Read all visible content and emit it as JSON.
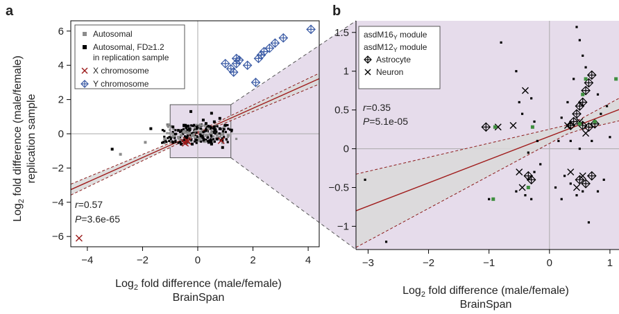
{
  "chart_data": [
    {
      "panel": "a",
      "type": "scatter",
      "xlabel": "Log2 fold difference (male/female)",
      "xlabel_sub": "BrainSpan",
      "ylabel": "Log2 fold difference (male/female)",
      "ylabel_sub": "replication sample",
      "xlim": [
        -4.6,
        4.4
      ],
      "ylim": [
        -6.6,
        6.6
      ],
      "xticks": [
        -4,
        -2,
        0,
        2,
        4
      ],
      "yticks": [
        -6,
        -4,
        -2,
        0,
        2,
        4,
        6
      ],
      "stats": {
        "r": "=0.57",
        "p": "=3.6e-65"
      },
      "legend": {
        "position": "top-left",
        "entries": [
          {
            "label": "Autosomal",
            "marker": "square",
            "color": "#8c8c8c"
          },
          {
            "label": "Autosomal, FD≥1.2",
            "label2": "in replication sample",
            "marker": "square",
            "color": "#000000"
          },
          {
            "label": "X chromosome",
            "marker": "x",
            "color": "#9b1b1b"
          },
          {
            "label": "Y chromosome",
            "marker": "diamond-plus",
            "color": "#3b5ba5"
          }
        ]
      },
      "zoom_box": {
        "x": [
          -1.0,
          1.2
        ],
        "y": [
          -1.4,
          1.7
        ]
      },
      "regression": {
        "slope": 0.72,
        "intercept": 0.05,
        "ci": [
          [
            -4.6,
            0.28
          ],
          [
            0.0,
            0.1
          ],
          [
            4.4,
            0.28
          ]
        ]
      },
      "series": [
        {
          "name": "Y chromosome",
          "points": [
            [
              4.1,
              6.1
            ],
            [
              3.1,
              5.6
            ],
            [
              2.8,
              5.3
            ],
            [
              2.6,
              5.0
            ],
            [
              2.4,
              4.8
            ],
            [
              2.3,
              4.6
            ],
            [
              2.2,
              4.4
            ],
            [
              1.8,
              4.0
            ],
            [
              1.5,
              4.3
            ],
            [
              1.4,
              4.1
            ],
            [
              1.3,
              3.6
            ],
            [
              1.4,
              4.4
            ],
            [
              1.2,
              3.8
            ],
            [
              1.0,
              4.1
            ],
            [
              2.1,
              3.0
            ]
          ]
        },
        {
          "name": "X chromosome",
          "points": [
            [
              -4.3,
              -6.1
            ],
            [
              -0.4,
              -0.4
            ],
            [
              -0.5,
              -0.5
            ],
            [
              -0.45,
              -0.55
            ],
            [
              -0.35,
              -0.45
            ],
            [
              0.85,
              -0.4
            ]
          ]
        },
        {
          "name": "Autosomal",
          "points": [
            [
              -2.8,
              -1.2
            ],
            [
              -1.9,
              -0.5
            ],
            [
              -1.2,
              -0.3
            ],
            [
              -0.9,
              -0.15
            ],
            [
              -0.7,
              -0.2
            ],
            [
              -0.6,
              -0.1
            ],
            [
              -0.5,
              0.1
            ],
            [
              -0.3,
              0.05
            ],
            [
              -0.2,
              -0.1
            ],
            [
              -0.1,
              -0.2
            ],
            [
              0.1,
              0.1
            ],
            [
              0.3,
              -0.1
            ],
            [
              0.5,
              0.05
            ],
            [
              0.7,
              -0.1
            ],
            [
              0.9,
              0.0
            ],
            [
              1.1,
              -0.1
            ]
          ]
        },
        {
          "name": "Autosomal, FD≥1.2",
          "points": [
            [
              -3.1,
              -0.9
            ],
            [
              -1.7,
              0.3
            ],
            [
              -0.9,
              0.4
            ],
            [
              -0.9,
              -0.5
            ],
            [
              -0.7,
              0.2
            ],
            [
              -0.6,
              -0.6
            ],
            [
              -0.5,
              0.5
            ],
            [
              -0.4,
              -0.2
            ],
            [
              -0.3,
              0.3
            ],
            [
              -0.25,
              1.3
            ],
            [
              -0.2,
              -0.6
            ],
            [
              0.2,
              0.8
            ],
            [
              0.3,
              0.6
            ],
            [
              0.4,
              -0.5
            ],
            [
              0.5,
              1.2
            ],
            [
              0.6,
              0.4
            ],
            [
              0.7,
              -0.3
            ],
            [
              0.8,
              0.9
            ],
            [
              0.9,
              -0.8
            ],
            [
              1.0,
              0.5
            ],
            [
              0.5,
              -0.6
            ],
            [
              0.3,
              0.2
            ],
            [
              0.6,
              0.7
            ],
            [
              0.8,
              0.3
            ]
          ]
        }
      ]
    },
    {
      "panel": "b",
      "type": "scatter",
      "xlabel": "Log2 fold difference (male/female)",
      "xlabel_sub": "BrainSpan",
      "xlim": [
        -3.2,
        1.15
      ],
      "ylim": [
        -1.3,
        1.65
      ],
      "xticks": [
        -3,
        -2,
        -1,
        0,
        1
      ],
      "yticks": [
        -1,
        -0.5,
        0,
        0.5,
        1,
        1.5
      ],
      "stats": {
        "r": "=0.35",
        "p": "=5.1e-05"
      },
      "legend": {
        "position": "top-left",
        "entries": [
          {
            "label": "asdM16",
            "sub": "Y",
            "suffix": " module",
            "color": "#3f8f3f"
          },
          {
            "label": "asdM12",
            "sub": "Y",
            "suffix": " module",
            "color": "#c02020"
          },
          {
            "label": "Astrocyte",
            "marker": "diamond-plus",
            "color": "#000000"
          },
          {
            "label": "Neuron",
            "marker": "x",
            "color": "#000000"
          }
        ]
      },
      "regression": {
        "slope": 0.3,
        "intercept": 0.16
      },
      "series": [
        {
          "name": "Astrocyte",
          "points": [
            [
              -1.05,
              0.28
            ],
            [
              0.35,
              0.3
            ],
            [
              0.4,
              0.35
            ],
            [
              0.45,
              0.45
            ],
            [
              0.5,
              0.55
            ],
            [
              0.55,
              0.6
            ],
            [
              0.6,
              0.75
            ],
            [
              0.65,
              0.85
            ],
            [
              0.7,
              0.95
            ],
            [
              0.55,
              0.3
            ],
            [
              0.65,
              0.28
            ],
            [
              0.75,
              0.32
            ],
            [
              -0.35,
              -0.35
            ],
            [
              -0.3,
              -0.4
            ],
            [
              0.7,
              -0.35
            ],
            [
              0.5,
              -0.4
            ],
            [
              0.6,
              -0.45
            ]
          ]
        },
        {
          "name": "Neuron",
          "points": [
            [
              -0.4,
              0.75
            ],
            [
              -0.6,
              0.3
            ],
            [
              -0.85,
              0.28
            ],
            [
              0.3,
              0.3
            ],
            [
              0.5,
              0.35
            ],
            [
              0.6,
              0.2
            ],
            [
              0.45,
              -0.5
            ],
            [
              0.35,
              -0.3
            ],
            [
              -0.5,
              -0.3
            ],
            [
              -0.45,
              -0.5
            ],
            [
              0.55,
              -0.35
            ]
          ]
        },
        {
          "name": "asdM16",
          "points": [
            [
              -0.9,
              0.28
            ],
            [
              -0.93,
              -0.65
            ],
            [
              -0.35,
              -0.5
            ],
            [
              -0.28,
              0.28
            ],
            [
              0.5,
              0.32
            ],
            [
              0.55,
              0.7
            ],
            [
              0.6,
              0.9
            ],
            [
              0.75,
              0.35
            ],
            [
              1.1,
              0.9
            ]
          ]
        },
        {
          "name": "other",
          "points": [
            [
              -3.05,
              -0.4
            ],
            [
              -2.7,
              -1.2
            ],
            [
              -1.0,
              -0.65
            ],
            [
              -0.8,
              1.37
            ],
            [
              -0.55,
              1.0
            ],
            [
              -0.5,
              0.6
            ],
            [
              -0.45,
              0.45
            ],
            [
              -0.3,
              0.65
            ],
            [
              -0.25,
              0.35
            ],
            [
              -0.2,
              0.1
            ],
            [
              -0.55,
              -0.55
            ],
            [
              -0.4,
              -0.6
            ],
            [
              -0.3,
              -0.65
            ],
            [
              -0.25,
              -0.3
            ],
            [
              0.1,
              -0.5
            ],
            [
              0.2,
              -0.65
            ],
            [
              0.35,
              -0.45
            ],
            [
              0.45,
              -0.6
            ],
            [
              0.55,
              -0.55
            ],
            [
              0.65,
              -0.95
            ],
            [
              0.8,
              -0.55
            ],
            [
              0.45,
              1.57
            ],
            [
              0.5,
              1.4
            ],
            [
              0.55,
              1.2
            ],
            [
              0.6,
              1.05
            ],
            [
              0.4,
              0.9
            ],
            [
              0.3,
              0.6
            ],
            [
              0.2,
              0.4
            ],
            [
              0.15,
              0.1
            ],
            [
              0.35,
              0.1
            ],
            [
              0.5,
              0.0
            ],
            [
              0.7,
              0.1
            ],
            [
              0.85,
              0.45
            ],
            [
              0.95,
              0.55
            ],
            [
              1.0,
              0.15
            ],
            [
              -0.35,
              -0.05
            ],
            [
              -0.15,
              -0.2
            ],
            [
              0.25,
              -0.35
            ],
            [
              0.8,
              0.7
            ],
            [
              0.9,
              -0.4
            ]
          ]
        }
      ]
    }
  ]
}
